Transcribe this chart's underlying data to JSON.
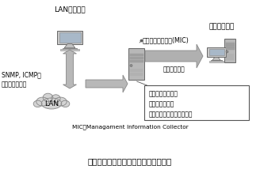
{
  "title": "図　プロトコルモニタ型階層管理方式",
  "mic_label": "管理情報収集装置(MIC)",
  "lan_mgmt_label": "LAN管理装置",
  "integrated_label": "統合管理装置",
  "snmp_label": "SNMP, ICMPを\n用いた管理通信",
  "lan_label": "LAN",
  "transfer_label": "管理情報転送",
  "box_lines": [
    "管理通信のモニタ",
    "管理情報の抽出",
    "統合管理装置への情報提供"
  ],
  "mic_note": "MIC：Managament Information Collector",
  "font_size_main": 6.5,
  "font_size_small": 5.5,
  "font_size_title": 7.5,
  "font_size_note": 5.0
}
